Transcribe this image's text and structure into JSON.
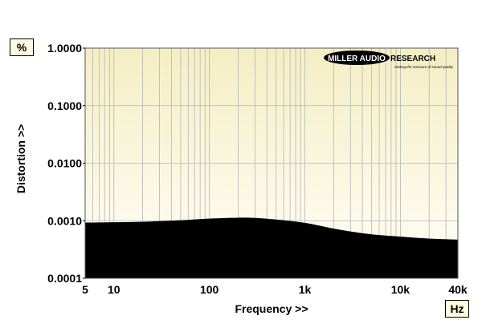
{
  "chart_data": {
    "type": "area",
    "xlabel": "Frequency >>",
    "ylabel": "Distortion >>",
    "y_unit": "%",
    "x_unit": "Hz",
    "x_scale": "log",
    "y_scale": "log",
    "xlim": [
      5,
      40000
    ],
    "ylim": [
      0.0001,
      1
    ],
    "x_ticks": [
      {
        "value": 5,
        "label": "5"
      },
      {
        "value": 10,
        "label": "10"
      },
      {
        "value": 100,
        "label": "100"
      },
      {
        "value": 1000,
        "label": "1k"
      },
      {
        "value": 10000,
        "label": "10k"
      },
      {
        "value": 40000,
        "label": "40k"
      }
    ],
    "y_ticks": [
      {
        "value": 1,
        "label": "1.0000"
      },
      {
        "value": 0.1,
        "label": "0.1000"
      },
      {
        "value": 0.01,
        "label": "0.0100"
      },
      {
        "value": 0.001,
        "label": "0.0010"
      },
      {
        "value": 0.0001,
        "label": "0.0001"
      }
    ],
    "grid": true,
    "series": [
      {
        "x": [
          5,
          10,
          20,
          50,
          100,
          200,
          300,
          500,
          1000,
          2000,
          3000,
          5000,
          10000,
          20000,
          40000
        ],
        "y": [
          0.00093,
          0.00094,
          0.00096,
          0.00102,
          0.00109,
          0.00113,
          0.00112,
          0.00105,
          0.00092,
          0.00073,
          0.00065,
          0.00058,
          0.00053,
          0.00049,
          0.00047
        ]
      }
    ],
    "colors": {
      "fill": "#000000",
      "background_top": "#f6f0c8",
      "background_bottom": "#fffdf4",
      "grid": "#b0b0b0"
    }
  },
  "logo": {
    "text": "MILLER AUDIO RESEARCH",
    "tagline": "Setting the measure of sound quality"
  }
}
